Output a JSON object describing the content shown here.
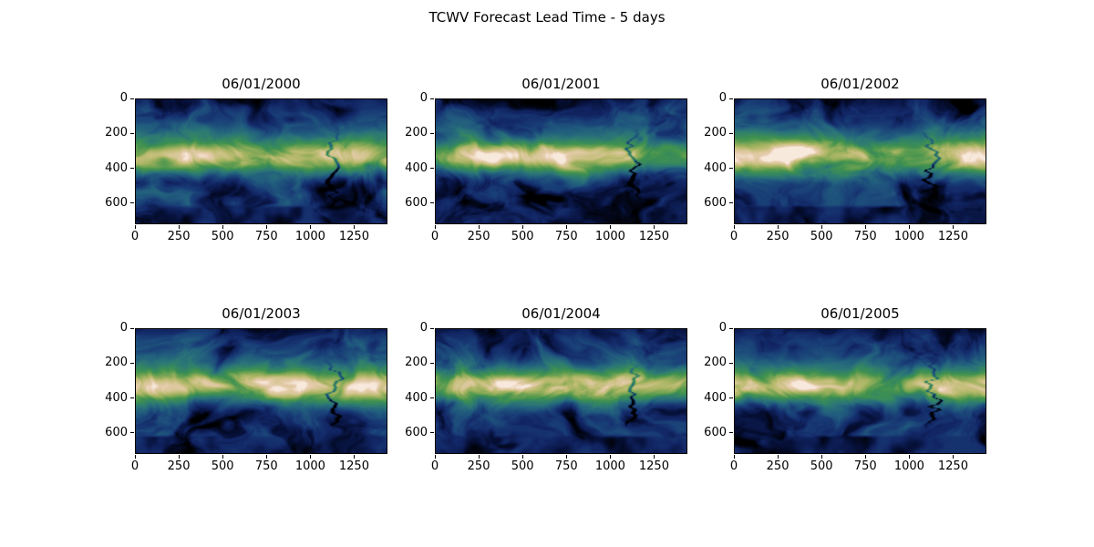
{
  "figure": {
    "suptitle": "TCWV Forecast Lead Time - 5 days",
    "background": "#ffffff",
    "text_color": "#000000"
  },
  "chart_data": {
    "type": "heatmap",
    "title": "TCWV Forecast Lead Time - 5 days",
    "grid": {
      "rows": 2,
      "cols": 3
    },
    "subplots": [
      {
        "title": "06/01/2000"
      },
      {
        "title": "06/01/2001"
      },
      {
        "title": "06/01/2002"
      },
      {
        "title": "06/01/2003"
      },
      {
        "title": "06/01/2004"
      },
      {
        "title": "06/01/2005"
      }
    ],
    "x_ticks": [
      0,
      250,
      500,
      750,
      1000,
      1250
    ],
    "y_ticks": [
      0,
      200,
      400,
      600
    ],
    "x_range": [
      0,
      1440
    ],
    "y_range": [
      0,
      721
    ],
    "legend": "none",
    "gridlines": false,
    "colormap_description": "gist_earth style: black -> navy (dry/polar) -> teal -> green -> sand yellow -> pale pink (moist tropics)",
    "colormap_stops": [
      [
        0.0,
        "#000000"
      ],
      [
        0.05,
        "#061038"
      ],
      [
        0.1,
        "#122665"
      ],
      [
        0.16,
        "#193e77"
      ],
      [
        0.24,
        "#215c7e"
      ],
      [
        0.33,
        "#2b7578"
      ],
      [
        0.42,
        "#348564"
      ],
      [
        0.52,
        "#40924f"
      ],
      [
        0.62,
        "#6fa252"
      ],
      [
        0.72,
        "#a0b25f"
      ],
      [
        0.8,
        "#c1bd76"
      ],
      [
        0.88,
        "#d8c798"
      ],
      [
        0.94,
        "#e5cbab"
      ],
      [
        1.0,
        "#f8e9dd"
      ]
    ],
    "field_description": "Total column water vapor maps: bright equatorial moisture band with pale peak over left-center, swirling midlatitude filaments over dark blue oceans, thin dark meander near x=1130, black Antarctic strip along the bottom"
  }
}
